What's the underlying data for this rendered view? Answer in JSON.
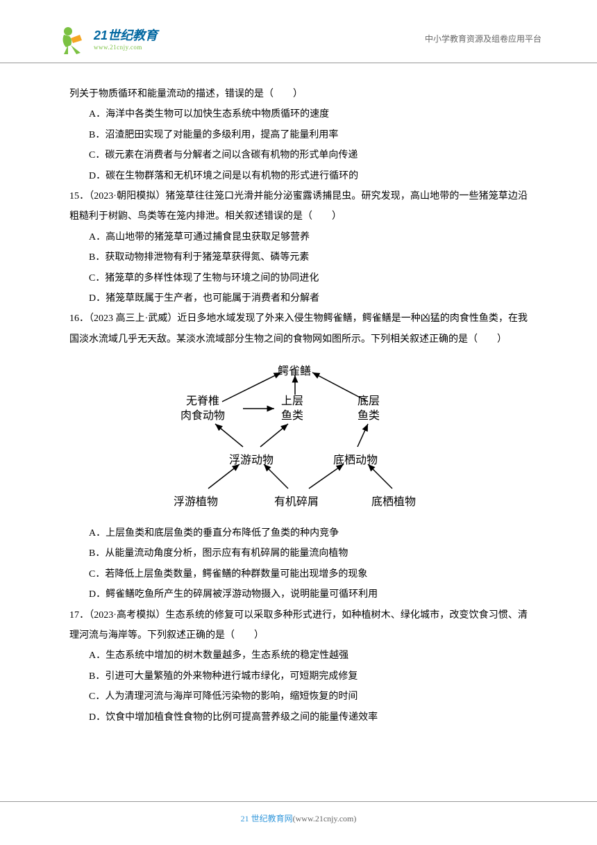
{
  "header": {
    "logo_main": "21世纪教育",
    "logo_sub": "www.21cnjy.com",
    "right_text": "中小学教育资源及组卷应用平台"
  },
  "content": {
    "intro": "列关于物质循环和能量流动的描述，错误的是（　　）",
    "q14_options": {
      "A": "A．海洋中各类生物可以加快生态系统中物质循环的速度",
      "B": "B．沼渣肥田实现了对能量的多级利用，提高了能量利用率",
      "C": "C．碳元素在消费者与分解者之间以含碳有机物的形式单向传递",
      "D": "D．碳在生物群落和无机环境之间是以有机物的形式进行循环的"
    },
    "q15_stem": "15．（2023·朝阳模拟）猪笼草往往笼口光滑并能分泌蜜露诱捕昆虫。研究发现，高山地带的一些猪笼草边沿粗糙利于树鼩、鸟类等在笼内排泄。相关叙述错误的是（　　）",
    "q15_options": {
      "A": "A．高山地带的猪笼草可通过捕食昆虫获取足够营养",
      "B": "B．获取动物排泄物有利于猪笼草获得氮、磷等元素",
      "C": "C．猪笼草的多样性体现了生物与环境之间的协同进化",
      "D": "D．猪笼草既属于生产者，也可能属于消费者和分解者"
    },
    "q16_stem": "16．（2023 高三上·武威）近日多地水域发现了外来入侵生物鳄雀鳝，鳄雀鳝是一种凶猛的肉食性鱼类，在我国淡水流域几乎无天敌。某淡水流域部分生物之间的食物网如图所示。下列相关叙述正确的是（　　）",
    "diagram": {
      "nodes": {
        "top": "鳄雀鳝",
        "left_upper": "无脊椎\n肉食动物",
        "mid_upper": "上层\n鱼类",
        "right_upper": "底层\n鱼类",
        "left_mid": "浮游动物",
        "right_mid": "底栖动物",
        "bottom_left": "浮游植物",
        "bottom_mid": "有机碎屑",
        "bottom_right": "底栖植物"
      }
    },
    "q16_options": {
      "A": "A．上层鱼类和底层鱼类的垂直分布降低了鱼类的种内竞争",
      "B": "B．从能量流动角度分析，图示应有有机碎屑的能量流向植物",
      "C": "C．若降低上层鱼类数量，鳄雀鳝的种群数量可能出现增多的现象",
      "D": "D．鳄雀鳝吃鱼所产生的碎屑被浮游动物摄入，说明能量可循环利用"
    },
    "q17_stem": "17．（2023·高考模拟）生态系统的修复可以采取多种形式进行，如种植树木、绿化城市，改变饮食习惯、清理河流与海岸等。下列叙述正确的是（　　）",
    "q17_options": {
      "A": "A．生态系统中增加的树木数量越多，生态系统的稳定性越强",
      "B": "B．引进可大量繁殖的外来物种进行城市绿化，可短期完成修复",
      "C": "C．人为清理河流与海岸可降低污染物的影响，缩短恢复的时间",
      "D": "D．饮食中增加植食性食物的比例可提高营养级之间的能量传递效率"
    }
  },
  "footer": {
    "brand": "21 世纪教育网",
    "url": "(www.21cnjy.com)"
  }
}
